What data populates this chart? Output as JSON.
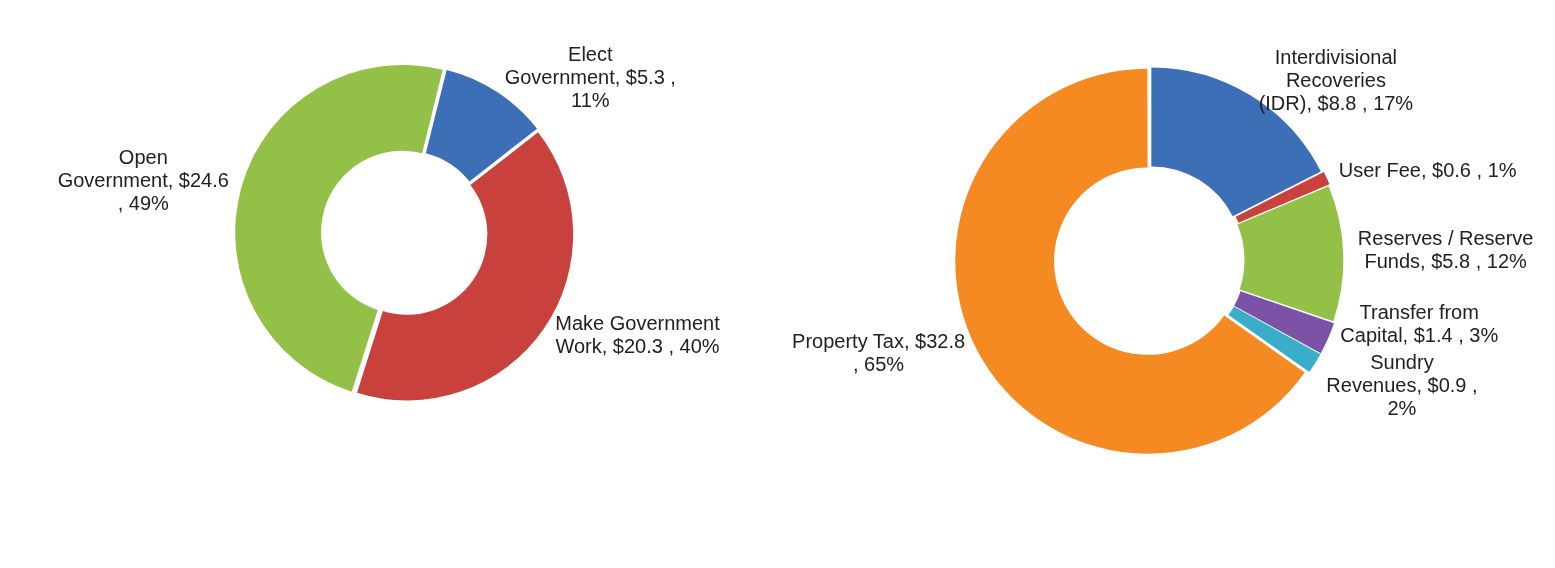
{
  "chart_data": [
    {
      "type": "donut",
      "categories": [
        "Elect Government",
        "Make Government Work",
        "Open Government"
      ],
      "values": [
        5.3,
        20.3,
        24.6
      ],
      "value_labels": [
        "$5.3 , 11%",
        "$20.3 , 40%",
        "$24.6 , 49%"
      ],
      "colors": [
        "#3d6fb6",
        "#c9413d",
        "#93c047"
      ],
      "legend": false
    },
    {
      "type": "donut",
      "categories": [
        "Interdivisional Recoveries (IDR)",
        "User Fee",
        "Reserves / Reserve Funds",
        "Transfer from Capital",
        "Sundry Revenues",
        "Property Tax"
      ],
      "values": [
        8.8,
        0.6,
        5.8,
        1.4,
        0.9,
        32.8
      ],
      "value_labels": [
        "$8.8 , 17%",
        "$0.6 , 1%",
        "$5.8 , 12%",
        "$1.4 , 3%",
        "$0.9 , 2%",
        "$32.8 , 65%"
      ],
      "colors": [
        "#3d6fb6",
        "#c9413d",
        "#93c047",
        "#7c52a6",
        "#3aaec8",
        "#f58a22"
      ],
      "legend": false
    }
  ]
}
